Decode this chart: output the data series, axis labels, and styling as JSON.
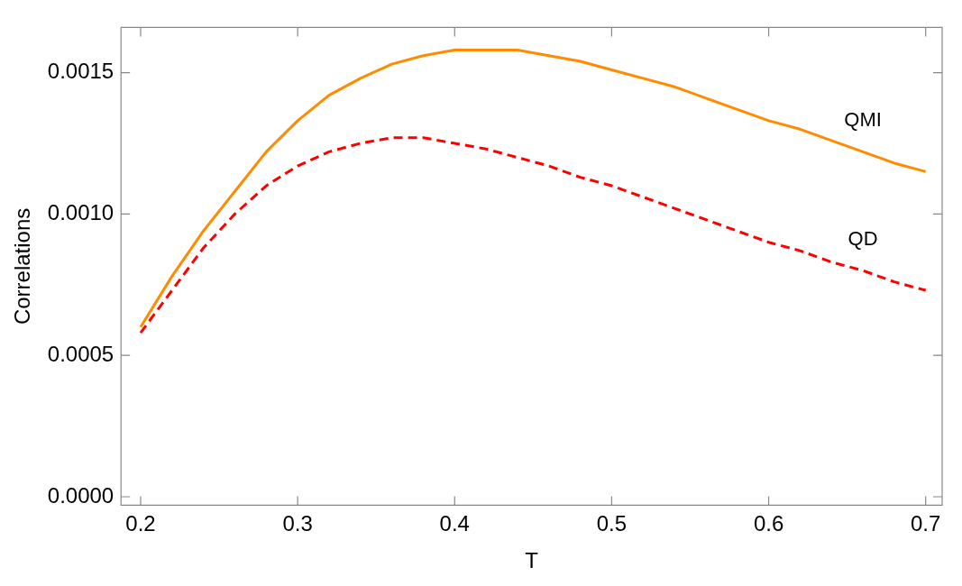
{
  "chart_data": {
    "type": "line",
    "xlabel": "T",
    "ylabel": "Correlations",
    "x": [
      0.2,
      0.22,
      0.24,
      0.26,
      0.28,
      0.3,
      0.32,
      0.34,
      0.36,
      0.38,
      0.4,
      0.42,
      0.44,
      0.46,
      0.48,
      0.5,
      0.52,
      0.54,
      0.56,
      0.58,
      0.6,
      0.62,
      0.64,
      0.66,
      0.68,
      0.7
    ],
    "series": [
      {
        "name": "QMI",
        "color": "#ff8c00",
        "line_style": "solid",
        "values": [
          0.0006,
          0.00078,
          0.00094,
          0.00108,
          0.00122,
          0.00133,
          0.00142,
          0.00148,
          0.00153,
          0.00156,
          0.00158,
          0.00158,
          0.00158,
          0.00156,
          0.00154,
          0.00151,
          0.00148,
          0.00145,
          0.00141,
          0.00137,
          0.00133,
          0.0013,
          0.00126,
          0.00122,
          0.00118,
          0.00115
        ]
      },
      {
        "name": "QD",
        "color": "#ff0000",
        "line_style": "dashed",
        "values": [
          0.00058,
          0.00073,
          0.00088,
          0.001,
          0.0011,
          0.00117,
          0.00122,
          0.00125,
          0.00127,
          0.00127,
          0.00125,
          0.00123,
          0.0012,
          0.00117,
          0.00113,
          0.0011,
          0.00106,
          0.00102,
          0.00098,
          0.00094,
          0.0009,
          0.00087,
          0.00083,
          0.0008,
          0.00076,
          0.00073
        ]
      }
    ],
    "xlim": [
      0.1875,
      0.7105
    ],
    "ylim": [
      -3e-05,
      0.00166
    ],
    "xticks": [
      0.2,
      0.3,
      0.4,
      0.5,
      0.6,
      0.7
    ],
    "yticks": [
      {
        "value": 0,
        "label": "0.0000"
      },
      {
        "value": 0.0005,
        "label": "0.0005"
      },
      {
        "value": 0.001,
        "label": "0.0010"
      },
      {
        "value": 0.0015,
        "label": "0.0015"
      }
    ],
    "grid": false,
    "legend": false,
    "marker": "none"
  }
}
